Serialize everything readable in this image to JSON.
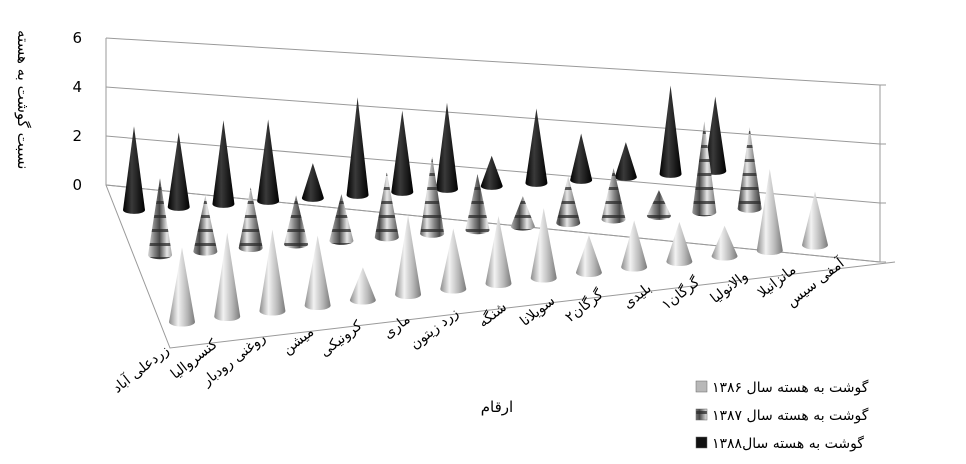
{
  "chart_data": {
    "type": "bar",
    "style": "3d-cone",
    "ylabel": "نسبت گوشت به هسته",
    "xlabel": "ارقام",
    "yticks": [
      "0",
      "2",
      "4",
      "6"
    ],
    "ylim": [
      0,
      6
    ],
    "categories": [
      "زردعلی آباد",
      "کنسروالیا",
      "روغنی رودبار",
      "میشن",
      "کرونیکی",
      "ماری",
      "زرد زیتون",
      "شنگه",
      "سویلانا",
      "گرگان۲",
      "بلیدی",
      "گرگان۱",
      "والانولیا",
      "مانزانیلا",
      "آمفی سیس"
    ],
    "series": [
      {
        "name": "گوشت به هسته سال ۱۳۸۶",
        "color": "#b8b8b8",
        "values": [
          3.2,
          3.6,
          3.5,
          3.0,
          1.4,
          3.4,
          2.6,
          2.9,
          3.0,
          1.6,
          2.0,
          1.7,
          1.3,
          3.5,
          2.3
        ]
      },
      {
        "name": "گوشت به هسته سال ۱۳۸۷",
        "color": "#8a8a8a",
        "values": [
          3.3,
          2.4,
          2.6,
          2.1,
          2.0,
          2.8,
          3.3,
          2.4,
          1.3,
          2.0,
          2.2,
          1.1,
          3.9,
          3.5,
          0
        ]
      },
      {
        "name": "گوشت به هسته سال۱۳۸۸",
        "color": "#111111",
        "values": [
          3.6,
          3.2,
          3.6,
          3.5,
          1.5,
          4.2,
          3.5,
          3.7,
          1.3,
          3.2,
          2.0,
          1.5,
          3.8,
          3.2,
          0
        ]
      }
    ],
    "grid": true,
    "legend": "bottom-right"
  }
}
